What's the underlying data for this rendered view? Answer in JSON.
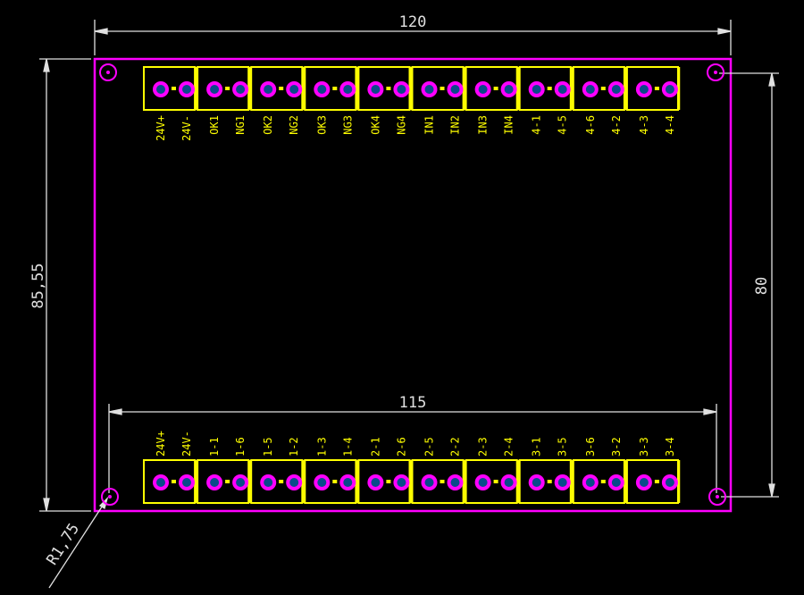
{
  "colors": {
    "board": "#ff00ff",
    "connector": "#ffff00",
    "pad_ring": "#ff00ff",
    "pad_center": "#0a4a8a",
    "dimension": "#e0e0e0",
    "background": "#000000"
  },
  "dimensions": {
    "width": "120",
    "height": "85,55",
    "hole_spacing_vertical": "80",
    "hole_spacing_horizontal": "115",
    "hole_radius": "R1,75"
  },
  "top_connector_labels": [
    "24V+",
    "24V-",
    "OK1",
    "NG1",
    "OK2",
    "NG2",
    "OK3",
    "NG3",
    "OK4",
    "NG4",
    "IN1",
    "IN2",
    "IN3",
    "IN4",
    "4-1",
    "4-5",
    "4-6",
    "4-2",
    "4-3",
    "4-4"
  ],
  "bottom_connector_labels": [
    "24V+",
    "24V-",
    "1-1",
    "1-6",
    "1-5",
    "1-2",
    "1-3",
    "1-4",
    "2-1",
    "2-6",
    "2-5",
    "2-2",
    "2-3",
    "2-4",
    "3-1",
    "3-5",
    "3-6",
    "3-2",
    "3-3",
    "3-4"
  ]
}
